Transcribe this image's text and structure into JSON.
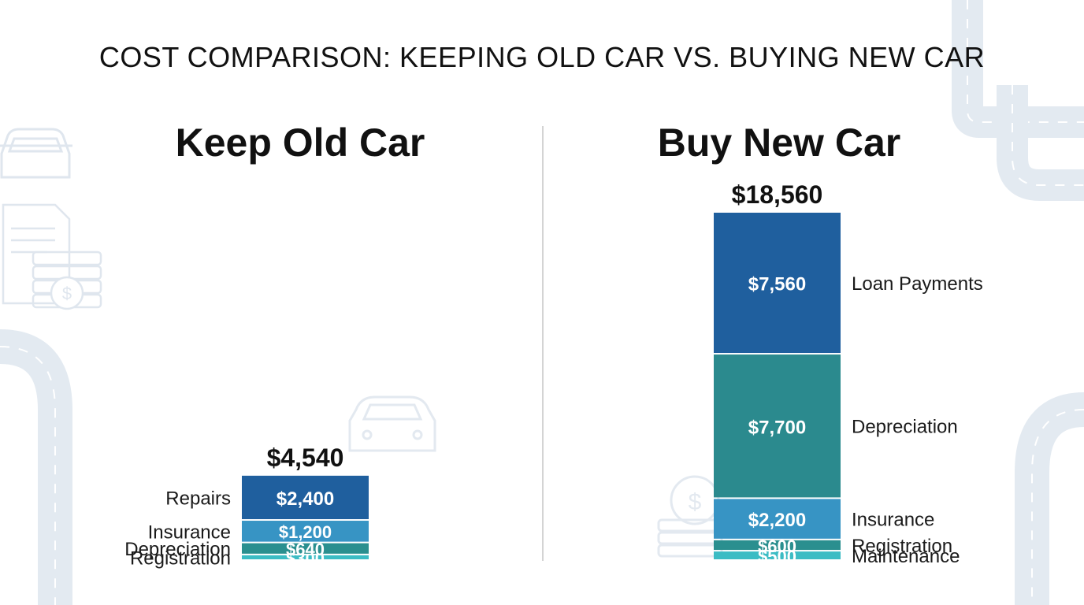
{
  "title": "COST COMPARISON: KEEPING OLD CAR VS. BUYING NEW CAR",
  "chart_data": [
    {
      "type": "bar",
      "stacked": true,
      "title": "Keep Old Car",
      "total_label": "$4,540",
      "series": [
        {
          "name": "Registration",
          "value": 300,
          "value_label": "$300",
          "color": "#3bbcc4"
        },
        {
          "name": "Depreciation",
          "value": 640,
          "value_label": "$640",
          "color": "#2a8f8f"
        },
        {
          "name": "Insurance",
          "value": 1200,
          "value_label": "$1,200",
          "color": "#3794c4"
        },
        {
          "name": "Repairs",
          "value": 2400,
          "value_label": "$2,400",
          "color": "#1f5f9e"
        }
      ],
      "legend_placement": "left"
    },
    {
      "type": "bar",
      "stacked": true,
      "title": "Buy New Car",
      "total_label": "$18,560",
      "series": [
        {
          "name": "Maintenance",
          "value": 500,
          "value_label": "$500",
          "color": "#3bbcc4"
        },
        {
          "name": "Registration",
          "value": 600,
          "value_label": "$600",
          "color": "#2a8f8f"
        },
        {
          "name": "Insurance",
          "value": 2200,
          "value_label": "$2,200",
          "color": "#3794c4"
        },
        {
          "name": "Depreciation",
          "value": 7700,
          "value_label": "$7,700",
          "color": "#2b8a8e"
        },
        {
          "name": "Loan Payments",
          "value": 7560,
          "value_label": "$7,560",
          "color": "#1f5f9e"
        }
      ],
      "legend_placement": "right"
    }
  ]
}
